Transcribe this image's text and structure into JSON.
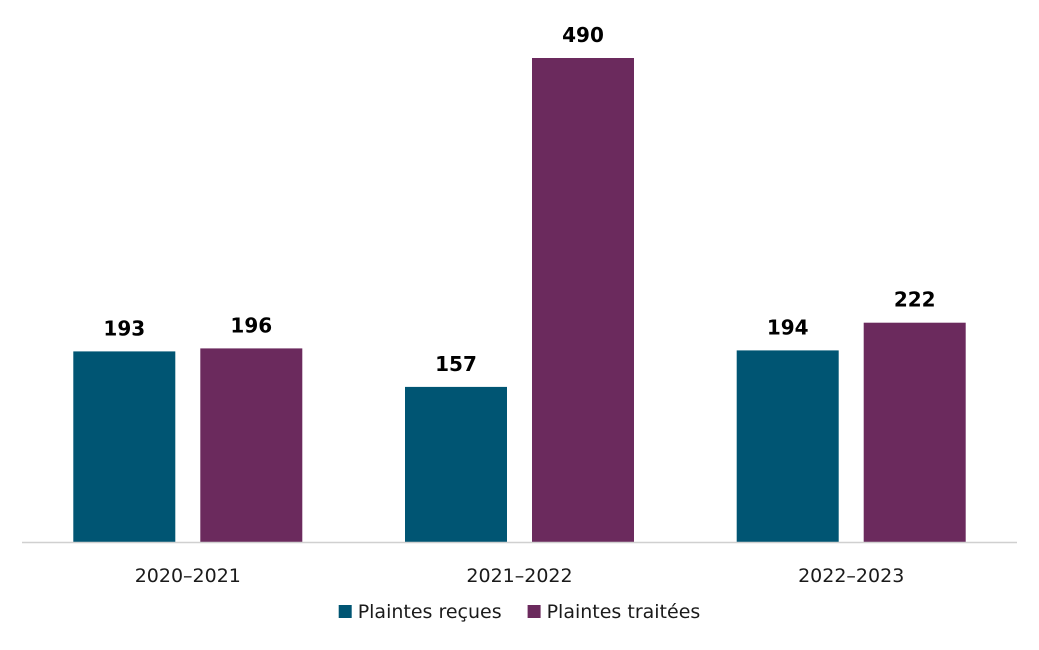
{
  "chart_data": {
    "type": "bar",
    "title": "",
    "xlabel": "",
    "ylabel": "",
    "categories": [
      "2020–2021",
      "2021–2022",
      "2022–2023"
    ],
    "series": [
      {
        "name": "Plaintes reçues",
        "values": [
          193,
          157,
          194
        ],
        "color": "#005573"
      },
      {
        "name": "Plaintes traitées",
        "values": [
          196,
          490,
          222
        ],
        "color": "#6b2a5d"
      }
    ],
    "ylim": [
      0,
      500
    ],
    "grid": false,
    "legend_position": "bottom"
  }
}
